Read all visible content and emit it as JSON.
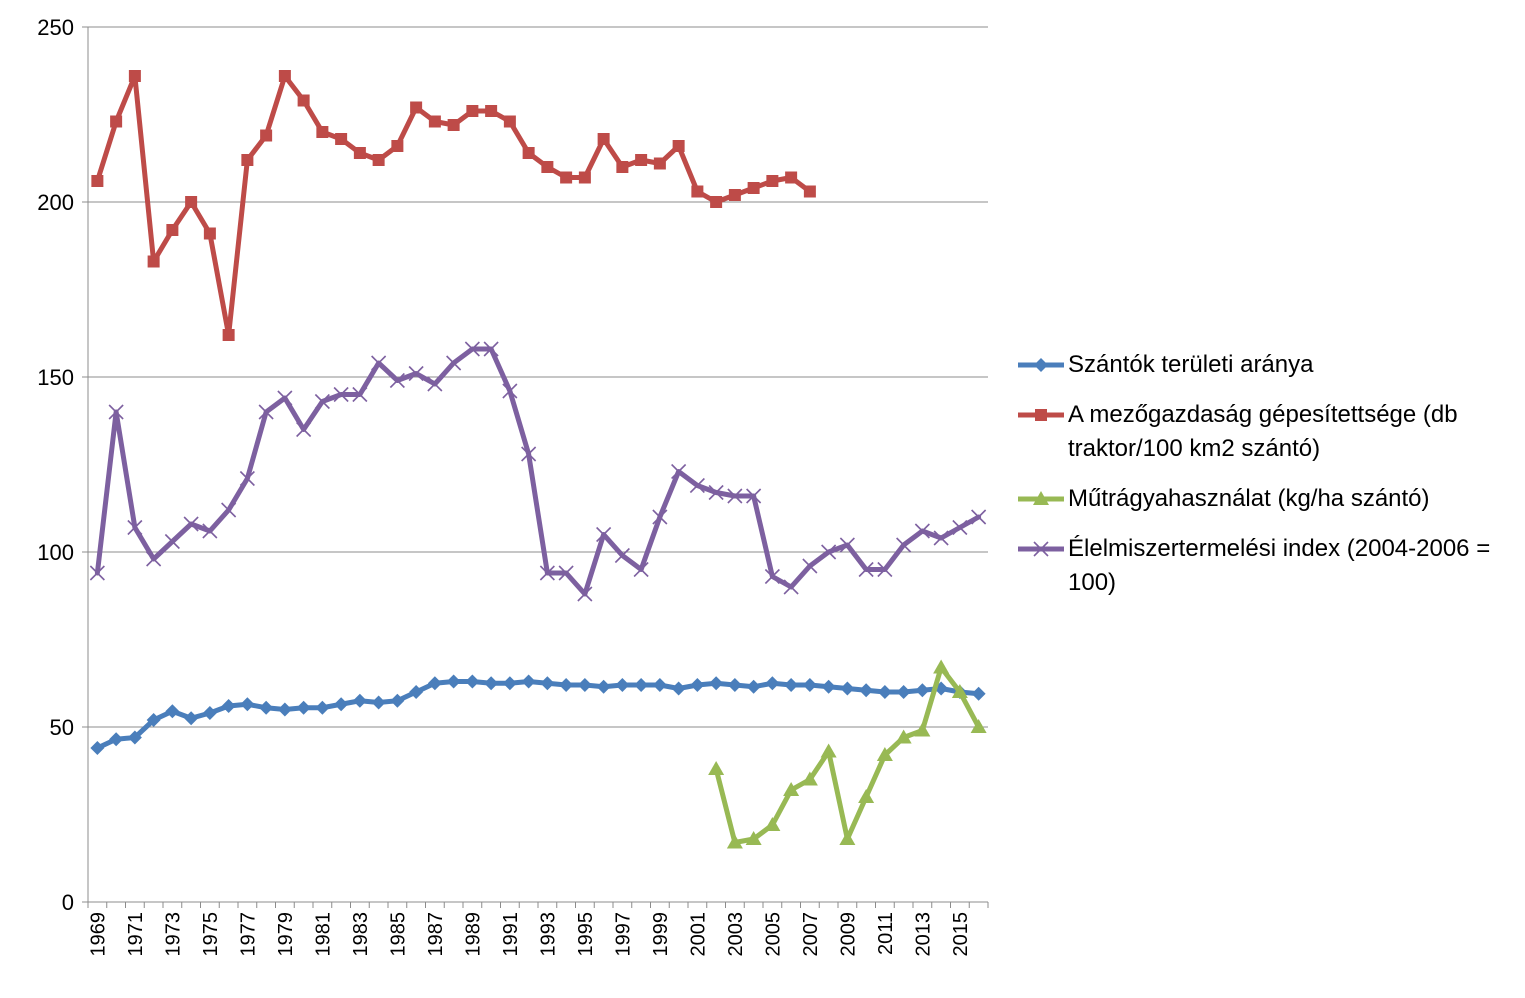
{
  "chart_data": {
    "type": "line",
    "title": "",
    "xlabel": "",
    "ylabel": "",
    "ylim": [
      0,
      250
    ],
    "yticks": [
      0,
      50,
      100,
      150,
      200,
      250
    ],
    "grid": "horizontal",
    "legend_position": "right",
    "x": [
      1969,
      1970,
      1971,
      1972,
      1973,
      1974,
      1975,
      1976,
      1977,
      1978,
      1979,
      1980,
      1981,
      1982,
      1983,
      1984,
      1985,
      1986,
      1987,
      1988,
      1989,
      1990,
      1991,
      1992,
      1993,
      1994,
      1995,
      1996,
      1997,
      1998,
      1999,
      2000,
      2001,
      2002,
      2003,
      2004,
      2005,
      2006,
      2007,
      2008,
      2009,
      2010,
      2011,
      2012,
      2013,
      2014,
      2015,
      2016
    ],
    "x_tick_labels": [
      "1969",
      "1971",
      "1973",
      "1975",
      "1977",
      "1979",
      "1981",
      "1983",
      "1985",
      "1987",
      "1989",
      "1991",
      "1993",
      "1995",
      "1997",
      "1999",
      "2001",
      "2003",
      "2005",
      "2007",
      "2009",
      "2011",
      "2013",
      "2015"
    ],
    "series": [
      {
        "name": "Szántók területi aránya",
        "color": "#4a7ebb",
        "marker": "diamond",
        "values": [
          44,
          46.5,
          47,
          52,
          54.5,
          52.5,
          54,
          56,
          56.5,
          55.5,
          55,
          55.5,
          55.5,
          56.5,
          57.5,
          57,
          57.5,
          60,
          62.5,
          63,
          63,
          62.5,
          62.5,
          63,
          62.5,
          62,
          62,
          61.5,
          62,
          62,
          62,
          61,
          62,
          62.5,
          62,
          61.5,
          62.5,
          62,
          62,
          61.5,
          61,
          60.5,
          60,
          60,
          60.5,
          61,
          60,
          59.5
        ]
      },
      {
        "name": "A mezőgazdaság gépesítettsége (db traktor/100 km2 szántó)",
        "color": "#be4b48",
        "marker": "square",
        "values": [
          206,
          223,
          236,
          183,
          192,
          200,
          191,
          162,
          212,
          219,
          236,
          229,
          220,
          218,
          214,
          212,
          216,
          227,
          223,
          222,
          226,
          226,
          223,
          214,
          210,
          207,
          207,
          218,
          210,
          212,
          211,
          216,
          203,
          200,
          202,
          204,
          206,
          207,
          203,
          null,
          null,
          null,
          null,
          null,
          null,
          null,
          null,
          null
        ]
      },
      {
        "name": "Műtrágyahasználat (kg/ha szántó)",
        "color": "#98b954",
        "marker": "triangle",
        "values": [
          null,
          null,
          null,
          null,
          null,
          null,
          null,
          null,
          null,
          null,
          null,
          null,
          null,
          null,
          null,
          null,
          null,
          null,
          null,
          null,
          null,
          null,
          null,
          null,
          null,
          null,
          null,
          null,
          null,
          null,
          null,
          null,
          null,
          38,
          17,
          18,
          22,
          32,
          35,
          43,
          18,
          30,
          42,
          47,
          49,
          67,
          60,
          50
        ]
      },
      {
        "name": "Élelmiszertermelési index (2004-2006 = 100)",
        "color": "#7d60a0",
        "marker": "x",
        "values": [
          94,
          140,
          107,
          98,
          103,
          108,
          106,
          112,
          121,
          140,
          144,
          135,
          143,
          145,
          145,
          154,
          149,
          151,
          148,
          154,
          158,
          158,
          146,
          128,
          94,
          94,
          88,
          105,
          99,
          95,
          110,
          123,
          119,
          117,
          116,
          116,
          93,
          90,
          96,
          100,
          102,
          95,
          95,
          102,
          106,
          104,
          107,
          110
        ]
      }
    ]
  },
  "legend": {
    "items": [
      "Szántók területi aránya",
      "A mezőgazdaság gépesítettsége (db traktor/100 km2 szántó)",
      "Műtrágyahasználat (kg/ha szántó)",
      "Élelmiszertermelési index (2004-2006 = 100)"
    ]
  }
}
